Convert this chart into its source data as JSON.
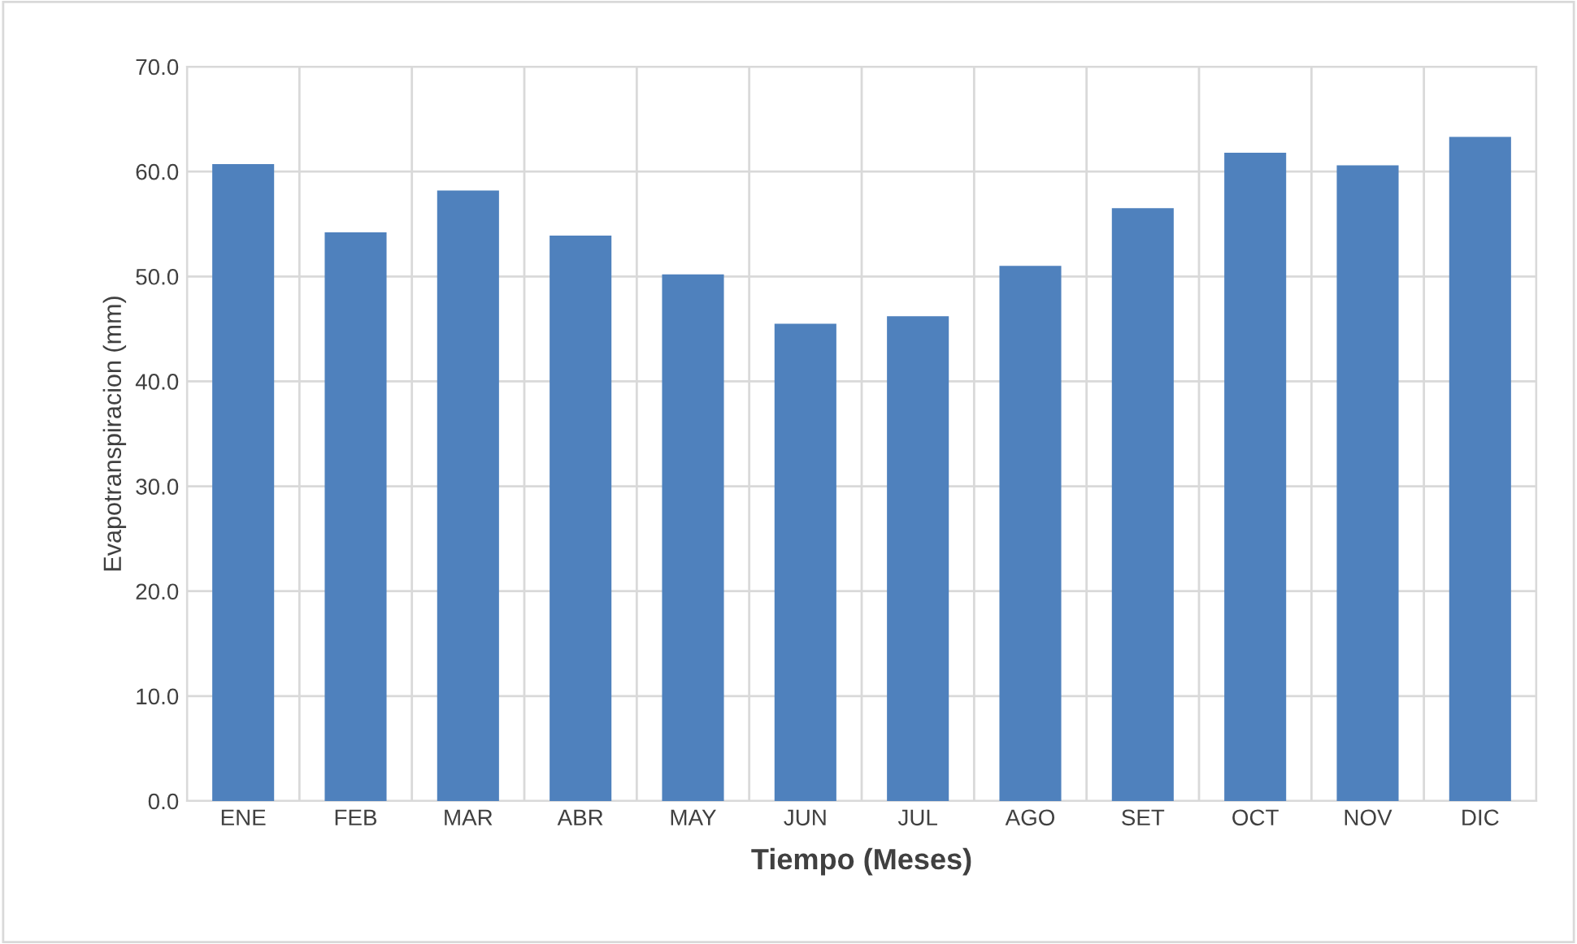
{
  "chart_data": {
    "type": "bar",
    "xlabel": "Tiempo (Meses)",
    "ylabel": "Evapotranspiracion (mm)",
    "categories": [
      "ENE",
      "FEB",
      "MAR",
      "ABR",
      "MAY",
      "JUN",
      "JUL",
      "AGO",
      "SET",
      "OCT",
      "NOV",
      "DIC"
    ],
    "values": [
      60.7,
      54.2,
      58.2,
      53.9,
      50.2,
      45.5,
      46.2,
      51.0,
      56.5,
      61.8,
      60.6,
      63.3
    ],
    "color": "#4f81bd",
    "ylim": [
      0,
      70
    ],
    "yticks": [
      {
        "value": 0,
        "label": "0.0"
      },
      {
        "value": 10,
        "label": "10.0"
      },
      {
        "value": 20,
        "label": "20.0"
      },
      {
        "value": 30,
        "label": "30.0"
      },
      {
        "value": 40,
        "label": "40.0"
      },
      {
        "value": 50,
        "label": "50.0"
      },
      {
        "value": 60,
        "label": "60.0"
      },
      {
        "value": 70,
        "label": "70.0"
      }
    ],
    "grid": true
  }
}
